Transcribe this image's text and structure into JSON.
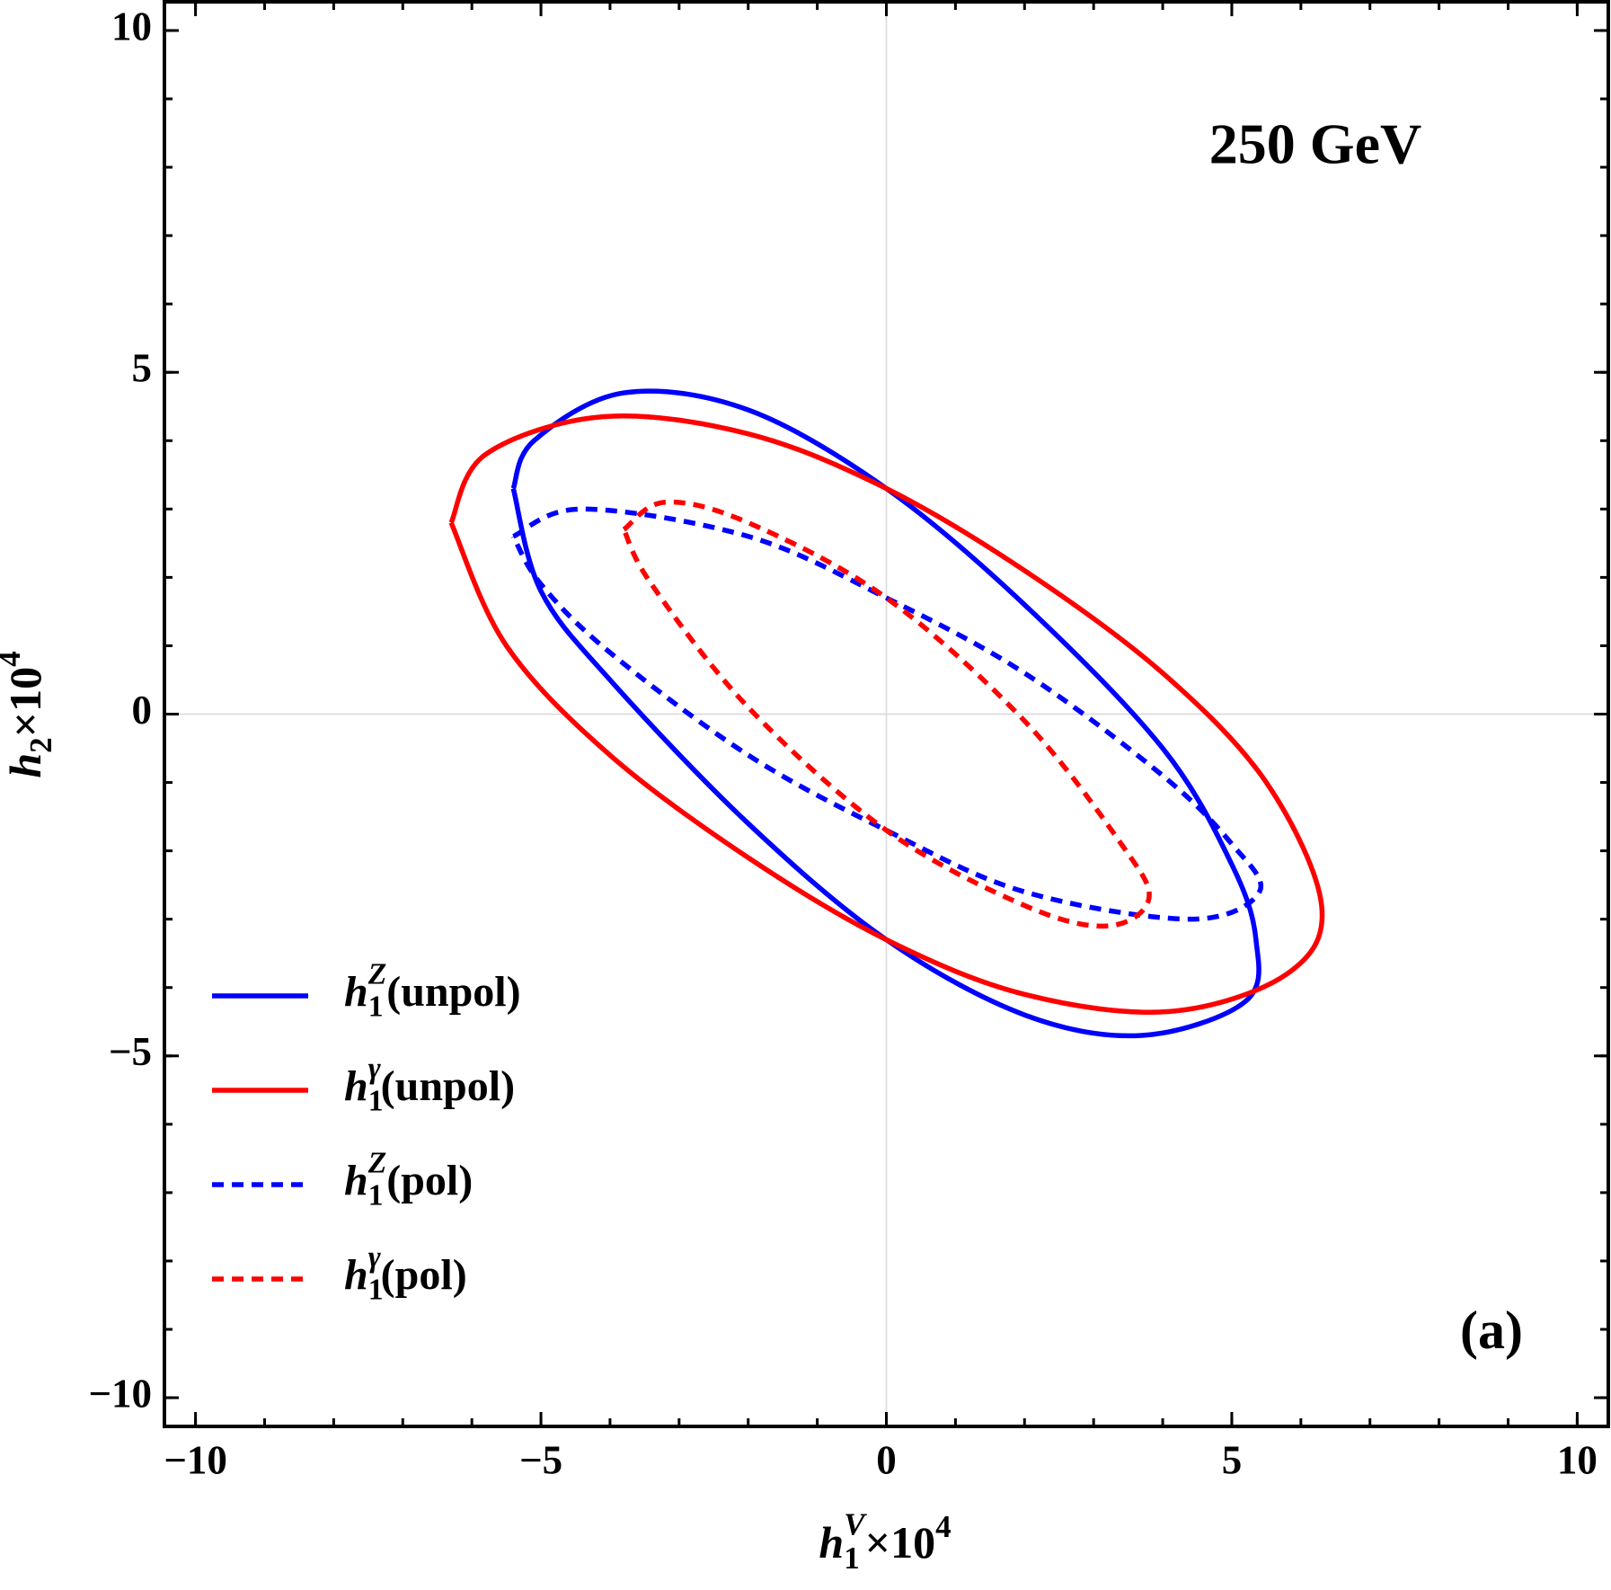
{
  "chart_data": {
    "type": "line",
    "annotations": [
      "250 GeV",
      "(a)"
    ],
    "xlabel": {
      "base": "h",
      "sub": "1",
      "sup": "V",
      "rest": "×10",
      "exp": "4"
    },
    "ylabel": {
      "base": "h",
      "sub": "2",
      "rest": "×10",
      "exp": "4"
    },
    "xlim": [
      -10.45,
      10.45
    ],
    "ylim": [
      -10.42,
      10.42
    ],
    "xticks": [
      {
        "value": -10,
        "label": "−10"
      },
      {
        "value": -5,
        "label": "−5"
      },
      0,
      5,
      10
    ],
    "yticks": [
      {
        "value": -10,
        "label": "−10"
      },
      {
        "value": -5,
        "label": "−5"
      },
      0,
      5,
      10
    ],
    "xticks_minor": [
      -10,
      -9,
      -8,
      -7,
      -6,
      -5,
      -4,
      -3,
      -2,
      -1,
      0,
      1,
      2,
      3,
      4,
      5,
      6,
      7,
      8,
      9,
      10
    ],
    "yticks_minor": [
      -10,
      -9,
      -8,
      -7,
      -6,
      -5,
      -4,
      -3,
      -2,
      -1,
      0,
      1,
      2,
      3,
      4,
      5,
      6,
      7,
      8,
      9,
      10
    ],
    "origin_lines": true,
    "legend": "lower left",
    "series": [
      {
        "name": {
          "base": "h",
          "sub": "1",
          "sup": "Z",
          "suffix": "(unpol)"
        },
        "color": "#0000ff",
        "dashed": false,
        "x": [
          -5.4,
          -5.1,
          -3.8,
          -2,
          0,
          2,
          4,
          5,
          5.35,
          5.2,
          3.7,
          2,
          0,
          -2,
          -4,
          -5,
          -5.4
        ],
        "y": [
          3.3,
          4.0,
          4.7,
          4.45,
          3.3,
          1.6,
          -0.5,
          -2.2,
          -3.3,
          -4.2,
          -4.7,
          -4.4,
          -3.3,
          -1.6,
          0.5,
          1.8,
          3.3
        ]
      },
      {
        "name": {
          "base": "h",
          "sub": "1",
          "sup": "γ",
          "suffix": "(unpol)"
        },
        "color": "#ff0000",
        "dashed": false,
        "x": [
          -6.3,
          -5.8,
          -4.1,
          -2,
          0,
          2,
          4,
          5.5,
          6.3,
          5.8,
          4.1,
          2,
          0,
          -2,
          -4,
          -5.5,
          -6.3
        ],
        "y": [
          2.8,
          3.8,
          4.35,
          4.1,
          3.3,
          2.1,
          0.6,
          -1.0,
          -2.8,
          -3.8,
          -4.35,
          -4.1,
          -3.3,
          -2.1,
          -0.6,
          1.0,
          2.8
        ]
      },
      {
        "name": {
          "base": "h",
          "sub": "1",
          "sup": "Z",
          "suffix": "(pol)"
        },
        "color": "#0000ff",
        "dashed": true,
        "x": [
          -5.4,
          -4.4,
          -2,
          0,
          2,
          4,
          5,
          5.4,
          4.4,
          2,
          0,
          -2,
          -4,
          -5,
          -5.4
        ],
        "y": [
          2.6,
          3.0,
          2.6,
          1.7,
          0.6,
          -0.9,
          -1.9,
          -2.6,
          -3.0,
          -2.6,
          -1.7,
          -0.6,
          0.9,
          1.9,
          2.6
        ]
      },
      {
        "name": {
          "base": "h",
          "sub": "1",
          "sup": "γ",
          "suffix": "(pol)"
        },
        "color": "#ff0000",
        "dashed": true,
        "x": [
          -3.8,
          -3.2,
          -2,
          0,
          2,
          3.4,
          3.8,
          3.2,
          2,
          0,
          -2,
          -3.4,
          -3.8
        ],
        "y": [
          2.7,
          3.1,
          2.8,
          1.7,
          -0.1,
          -1.9,
          -2.7,
          -3.1,
          -2.8,
          -1.7,
          0.1,
          1.9,
          2.7
        ]
      }
    ]
  }
}
